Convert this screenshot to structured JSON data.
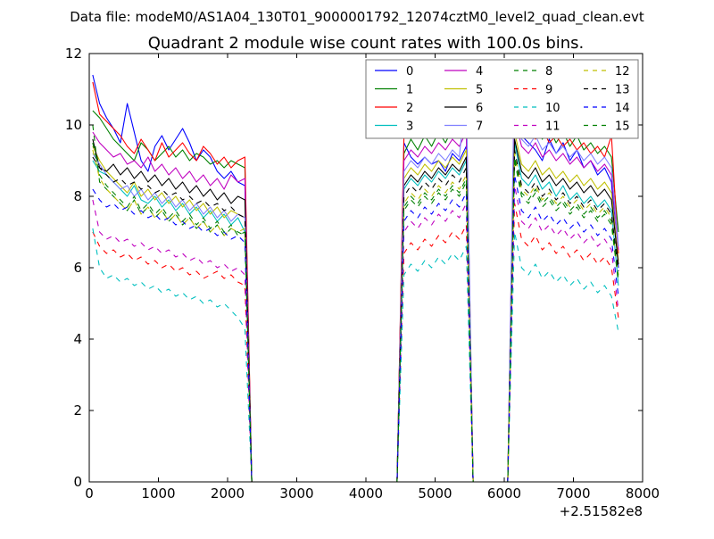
{
  "chart_data": {
    "type": "line",
    "suptitle": "Data file: modeM0/AS1A04_130T01_9000001792_12074cztM0_level2_quad_clean.evt",
    "title": "Quadrant 2 module wise count rates with 100.0s bins.",
    "xlabel": "",
    "ylabel": "",
    "x_offset_label": "+2.51582e8",
    "xlim": [
      0,
      8000
    ],
    "ylim": [
      0,
      12
    ],
    "xticks": [
      0,
      1000,
      2000,
      3000,
      4000,
      5000,
      6000,
      7000,
      8000
    ],
    "yticks": [
      0,
      2,
      4,
      6,
      8,
      10,
      12
    ],
    "legend_position": "top-right",
    "legend_columns": 4,
    "segments": [
      {
        "x_start": 50,
        "x_end": 2250,
        "n": 23
      },
      {
        "x_start": 4550,
        "x_end": 5450,
        "n": 10
      },
      {
        "x_start": 6150,
        "x_end": 7650,
        "n": 16
      }
    ],
    "gap_edges": [
      {
        "x": 2350,
        "y": 0
      },
      {
        "x": 4450,
        "y": 0
      },
      {
        "x": 5550,
        "y": 0
      },
      {
        "x": 6050,
        "y": 0
      }
    ],
    "series": [
      {
        "name": "0",
        "color": "#0000ff",
        "dash": "solid",
        "s1": [
          11.4,
          10.6,
          10.2,
          9.9,
          9.5,
          10.6,
          9.8,
          9.0,
          8.7,
          9.4,
          9.7,
          9.3,
          9.6,
          9.9,
          9.5,
          9.0,
          9.3,
          9.1,
          8.7,
          8.5,
          8.7,
          8.4,
          8.3
        ],
        "s2": [
          9.5,
          9.1,
          8.9,
          9.1,
          8.9,
          9.0,
          8.7,
          9.2,
          9.0,
          9.4
        ],
        "s3": [
          11.0,
          9.7,
          9.5,
          9.3,
          9.0,
          9.6,
          9.2,
          9.5,
          9.0,
          9.3,
          8.8,
          9.0,
          8.6,
          8.8,
          8.4,
          6.0
        ]
      },
      {
        "name": "1",
        "color": "#008000",
        "dash": "solid",
        "s1": [
          10.4,
          10.2,
          9.9,
          9.6,
          9.4,
          9.2,
          9.0,
          9.5,
          9.3,
          9.0,
          9.2,
          9.4,
          9.1,
          9.3,
          9.0,
          9.2,
          9.1,
          8.9,
          9.0,
          8.8,
          9.0,
          8.9,
          8.8
        ],
        "s2": [
          9.2,
          9.6,
          9.3,
          9.7,
          9.4,
          9.8,
          9.5,
          9.9,
          9.7,
          10.0
        ],
        "s3": [
          10.2,
          9.9,
          9.7,
          10.0,
          9.6,
          9.9,
          9.5,
          9.8,
          9.4,
          9.7,
          9.3,
          9.5,
          9.2,
          9.4,
          9.1,
          7.0
        ]
      },
      {
        "name": "2",
        "color": "#ff0000",
        "dash": "solid",
        "s1": [
          11.2,
          10.3,
          10.1,
          9.9,
          9.7,
          9.4,
          9.2,
          9.6,
          9.3,
          9.0,
          9.5,
          9.1,
          9.3,
          9.5,
          9.2,
          9.0,
          9.4,
          9.2,
          8.9,
          9.1,
          8.8,
          9.0,
          9.1
        ],
        "s2": [
          9.7,
          10.0,
          9.8,
          10.1,
          9.9,
          10.2,
          10.0,
          10.3,
          10.1,
          10.6
        ],
        "s3": [
          11.3,
          10.0,
          9.8,
          9.6,
          9.9,
          9.5,
          9.7,
          9.4,
          9.6,
          9.3,
          9.5,
          9.2,
          9.4,
          9.1,
          9.7,
          6.4
        ]
      },
      {
        "name": "3",
        "color": "#00bfbf",
        "dash": "solid",
        "s1": [
          9.0,
          8.7,
          8.6,
          8.4,
          8.2,
          8.0,
          8.3,
          7.9,
          7.8,
          8.0,
          7.7,
          7.9,
          7.6,
          7.8,
          7.5,
          7.7,
          7.4,
          7.6,
          7.3,
          7.5,
          7.2,
          7.4,
          7.0
        ],
        "s2": [
          8.2,
          8.5,
          8.3,
          8.6,
          8.4,
          8.7,
          8.5,
          8.8,
          8.6,
          9.0
        ],
        "s3": [
          9.5,
          8.5,
          8.3,
          8.6,
          8.2,
          8.4,
          8.0,
          8.3,
          7.9,
          8.1,
          7.8,
          8.0,
          7.7,
          7.9,
          7.6,
          5.5
        ]
      },
      {
        "name": "4",
        "color": "#bf00bf",
        "dash": "solid",
        "s1": [
          9.8,
          9.5,
          9.3,
          9.1,
          9.2,
          8.9,
          9.0,
          8.8,
          9.1,
          8.7,
          8.9,
          8.6,
          8.8,
          8.5,
          8.7,
          8.4,
          8.6,
          8.3,
          8.5,
          8.2,
          8.6,
          8.4,
          8.5
        ],
        "s2": [
          9.0,
          9.3,
          9.1,
          9.4,
          9.2,
          9.5,
          9.3,
          9.6,
          9.4,
          9.8
        ],
        "s3": [
          10.2,
          9.4,
          9.2,
          9.5,
          9.1,
          9.3,
          9.0,
          9.2,
          8.9,
          9.1,
          8.8,
          9.0,
          8.7,
          8.9,
          8.6,
          6.5
        ]
      },
      {
        "name": "5",
        "color": "#bfbf00",
        "dash": "solid",
        "s1": [
          9.4,
          9.0,
          8.7,
          8.5,
          8.3,
          8.1,
          8.4,
          8.0,
          8.2,
          7.9,
          8.1,
          7.8,
          8.0,
          7.7,
          7.9,
          7.6,
          7.8,
          7.5,
          7.7,
          7.4,
          7.6,
          7.5,
          7.4
        ],
        "s2": [
          8.5,
          8.8,
          8.6,
          8.9,
          8.7,
          9.0,
          8.8,
          9.1,
          8.9,
          9.3
        ],
        "s3": [
          9.8,
          8.9,
          8.7,
          9.0,
          8.6,
          8.8,
          8.5,
          8.7,
          8.4,
          8.6,
          8.3,
          8.5,
          8.2,
          8.4,
          8.1,
          6.2
        ]
      },
      {
        "name": "6",
        "color": "#000000",
        "dash": "solid",
        "s1": [
          9.6,
          8.8,
          8.7,
          8.9,
          8.6,
          8.8,
          8.5,
          8.7,
          8.4,
          8.6,
          8.3,
          8.5,
          8.2,
          8.4,
          8.1,
          8.3,
          8.0,
          8.2,
          7.9,
          8.1,
          7.8,
          8.0,
          7.9
        ],
        "s2": [
          8.3,
          8.6,
          8.4,
          8.7,
          8.5,
          8.8,
          8.6,
          8.9,
          8.7,
          9.1
        ],
        "s3": [
          9.6,
          8.7,
          8.5,
          8.8,
          8.4,
          8.6,
          8.3,
          8.5,
          8.2,
          8.4,
          8.1,
          8.3,
          8.0,
          8.2,
          7.9,
          6.1
        ]
      },
      {
        "name": "7",
        "color": "#7f7fff",
        "dash": "solid",
        "s1": [
          9.2,
          8.9,
          8.6,
          8.4,
          8.2,
          8.3,
          8.0,
          8.2,
          7.9,
          8.1,
          7.8,
          8.0,
          7.7,
          7.9,
          7.6,
          7.8,
          7.5,
          7.7,
          7.4,
          7.6,
          7.3,
          7.5,
          7.4
        ],
        "s2": [
          8.7,
          9.0,
          8.8,
          9.1,
          8.9,
          9.2,
          9.0,
          9.3,
          9.1,
          11.0
        ],
        "s3": [
          11.8,
          9.6,
          9.4,
          9.7,
          9.3,
          9.5,
          9.2,
          9.4,
          9.1,
          9.3,
          9.0,
          9.2,
          8.9,
          9.1,
          8.8,
          6.6
        ]
      },
      {
        "name": "8",
        "color": "#008000",
        "dash": "dashed",
        "s1": [
          10.0,
          8.4,
          8.2,
          8.0,
          7.8,
          7.6,
          7.9,
          7.5,
          7.7,
          7.4,
          7.6,
          7.3,
          7.5,
          7.2,
          7.4,
          7.1,
          7.3,
          7.0,
          7.2,
          6.9,
          7.1,
          7.0,
          6.9
        ],
        "s2": [
          7.6,
          7.9,
          7.7,
          8.0,
          7.8,
          8.1,
          7.9,
          8.2,
          8.0,
          8.4
        ],
        "s3": [
          9.0,
          8.0,
          7.8,
          8.1,
          7.7,
          7.9,
          7.6,
          7.8,
          7.5,
          7.7,
          7.4,
          7.6,
          7.3,
          7.5,
          7.2,
          5.6
        ]
      },
      {
        "name": "9",
        "color": "#ff0000",
        "dash": "dashed",
        "s1": [
          7.0,
          6.6,
          6.4,
          6.5,
          6.3,
          6.4,
          6.2,
          6.3,
          6.1,
          6.2,
          6.0,
          6.1,
          5.9,
          6.0,
          5.8,
          5.9,
          5.7,
          5.8,
          5.9,
          5.7,
          5.8,
          5.6,
          5.5
        ],
        "s2": [
          6.4,
          6.7,
          6.5,
          6.8,
          6.6,
          6.9,
          6.7,
          7.0,
          6.8,
          7.2
        ],
        "s3": [
          7.8,
          6.8,
          6.6,
          6.9,
          6.5,
          6.7,
          6.4,
          6.6,
          6.3,
          6.5,
          6.2,
          6.4,
          6.1,
          6.3,
          6.0,
          4.6
        ]
      },
      {
        "name": "10",
        "color": "#00bfbf",
        "dash": "dashed",
        "s1": [
          7.1,
          6.0,
          5.7,
          5.8,
          5.6,
          5.7,
          5.5,
          5.6,
          5.4,
          5.5,
          5.3,
          5.4,
          5.2,
          5.3,
          5.1,
          5.2,
          5.0,
          5.1,
          4.9,
          5.0,
          4.8,
          4.6,
          4.3
        ],
        "s2": [
          5.8,
          6.1,
          5.9,
          6.2,
          6.0,
          6.3,
          6.1,
          6.4,
          6.2,
          6.6
        ],
        "s3": [
          7.0,
          6.0,
          5.8,
          6.1,
          5.7,
          5.9,
          5.6,
          5.8,
          5.5,
          5.7,
          5.4,
          5.6,
          5.3,
          5.5,
          5.2,
          4.2
        ]
      },
      {
        "name": "11",
        "color": "#bf00bf",
        "dash": "dashed",
        "s1": [
          7.9,
          7.0,
          6.8,
          6.9,
          6.7,
          6.8,
          6.6,
          6.7,
          6.5,
          6.6,
          6.4,
          6.5,
          6.3,
          6.4,
          6.2,
          6.3,
          6.1,
          6.2,
          6.0,
          6.1,
          5.9,
          6.0,
          5.8
        ],
        "s2": [
          7.0,
          7.3,
          7.1,
          7.4,
          7.2,
          7.5,
          7.3,
          7.6,
          7.4,
          7.8
        ],
        "s3": [
          8.3,
          7.3,
          7.1,
          7.4,
          7.0,
          7.2,
          6.9,
          7.1,
          6.8,
          7.0,
          6.7,
          6.9,
          6.6,
          6.8,
          6.5,
          4.8
        ]
      },
      {
        "name": "12",
        "color": "#bfbf00",
        "dash": "dashed",
        "s1": [
          9.3,
          8.5,
          8.2,
          8.0,
          7.8,
          7.6,
          7.9,
          7.5,
          7.7,
          7.4,
          7.6,
          7.3,
          7.5,
          7.2,
          7.4,
          7.1,
          7.3,
          7.0,
          7.2,
          6.9,
          7.1,
          7.0,
          7.1
        ],
        "s2": [
          7.8,
          8.1,
          7.9,
          8.2,
          8.0,
          8.3,
          8.1,
          8.4,
          8.2,
          8.6
        ],
        "s3": [
          9.2,
          8.2,
          8.0,
          8.3,
          7.9,
          8.1,
          7.8,
          8.0,
          7.7,
          7.9,
          7.6,
          7.8,
          7.5,
          7.7,
          7.4,
          5.8
        ]
      },
      {
        "name": "13",
        "color": "#000000",
        "dash": "dashed",
        "s1": [
          9.1,
          8.8,
          8.6,
          8.4,
          8.5,
          8.3,
          8.4,
          8.2,
          8.3,
          8.1,
          8.2,
          8.0,
          8.1,
          7.9,
          8.0,
          7.8,
          7.9,
          7.7,
          7.8,
          7.6,
          7.7,
          7.5,
          7.4
        ],
        "s2": [
          8.0,
          8.3,
          8.1,
          8.4,
          8.2,
          8.5,
          8.3,
          8.6,
          8.4,
          8.8
        ],
        "s3": [
          9.3,
          8.3,
          8.1,
          8.4,
          8.0,
          8.2,
          7.9,
          8.1,
          7.8,
          8.0,
          7.7,
          7.9,
          7.6,
          7.8,
          7.5,
          5.9
        ]
      },
      {
        "name": "14",
        "color": "#0000ff",
        "dash": "dashed",
        "s1": [
          8.2,
          7.9,
          7.7,
          7.8,
          7.6,
          7.7,
          7.5,
          7.6,
          7.4,
          7.5,
          7.3,
          7.4,
          7.2,
          7.3,
          7.1,
          7.2,
          7.0,
          7.1,
          6.9,
          7.0,
          6.8,
          6.9,
          6.7
        ],
        "s2": [
          7.3,
          7.6,
          7.4,
          7.7,
          7.5,
          7.8,
          7.6,
          7.9,
          7.7,
          8.1
        ],
        "s3": [
          8.6,
          7.6,
          7.4,
          7.7,
          7.3,
          7.5,
          7.2,
          7.4,
          7.1,
          7.3,
          7.0,
          7.2,
          6.9,
          7.1,
          6.8,
          5.2
        ]
      },
      {
        "name": "15",
        "color": "#008000",
        "dash": "dashed",
        "s1": [
          9.5,
          8.6,
          8.3,
          8.1,
          7.9,
          7.7,
          8.0,
          7.6,
          7.8,
          7.5,
          7.7,
          7.4,
          7.6,
          7.3,
          7.5,
          7.2,
          7.4,
          7.1,
          7.3,
          7.0,
          7.2,
          6.9,
          7.0
        ],
        "s2": [
          7.7,
          8.0,
          7.8,
          8.1,
          7.9,
          8.2,
          8.0,
          8.3,
          8.1,
          8.5
        ],
        "s3": [
          9.1,
          8.1,
          7.9,
          8.2,
          7.8,
          8.0,
          7.7,
          7.9,
          7.6,
          7.8,
          7.5,
          7.7,
          7.4,
          7.6,
          7.3,
          5.7
        ]
      }
    ]
  }
}
